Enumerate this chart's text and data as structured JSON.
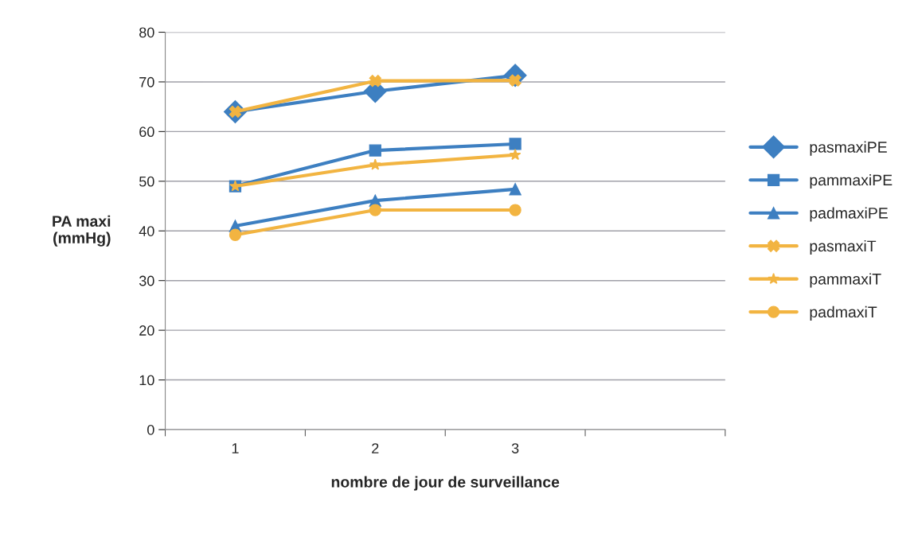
{
  "chart_data": {
    "type": "line",
    "xlabel": "nombre de jour de surveillance",
    "ylabel": "PA maxi\n(mmHg)",
    "categories": [
      "1",
      "2",
      "3",
      null
    ],
    "ylim": [
      0,
      80
    ],
    "yticks": [
      0,
      10,
      20,
      30,
      40,
      50,
      60,
      70,
      80
    ],
    "grid": "y",
    "legend": "right",
    "series": [
      {
        "name": "pasmaxiPE",
        "color": "#3d7fc1",
        "marker": "diamond",
        "values": [
          64,
          68.1,
          71.3,
          null
        ]
      },
      {
        "name": "pammaxiPE",
        "color": "#3d7fc1",
        "marker": "square",
        "values": [
          49,
          56.2,
          57.5,
          null
        ]
      },
      {
        "name": "padmaxiPE",
        "color": "#3d7fc1",
        "marker": "triangle",
        "values": [
          41,
          46.1,
          48.4,
          null
        ]
      },
      {
        "name": "pasmaxiT",
        "color": "#f2b441",
        "marker": "cross",
        "values": [
          64,
          70.2,
          70.3,
          null
        ]
      },
      {
        "name": "pammaxiT",
        "color": "#f2b441",
        "marker": "star",
        "values": [
          49,
          53.3,
          55.3,
          null
        ]
      },
      {
        "name": "padmaxiT",
        "color": "#f2b441",
        "marker": "circle",
        "values": [
          39.2,
          44.2,
          44.2,
          null
        ]
      }
    ]
  }
}
